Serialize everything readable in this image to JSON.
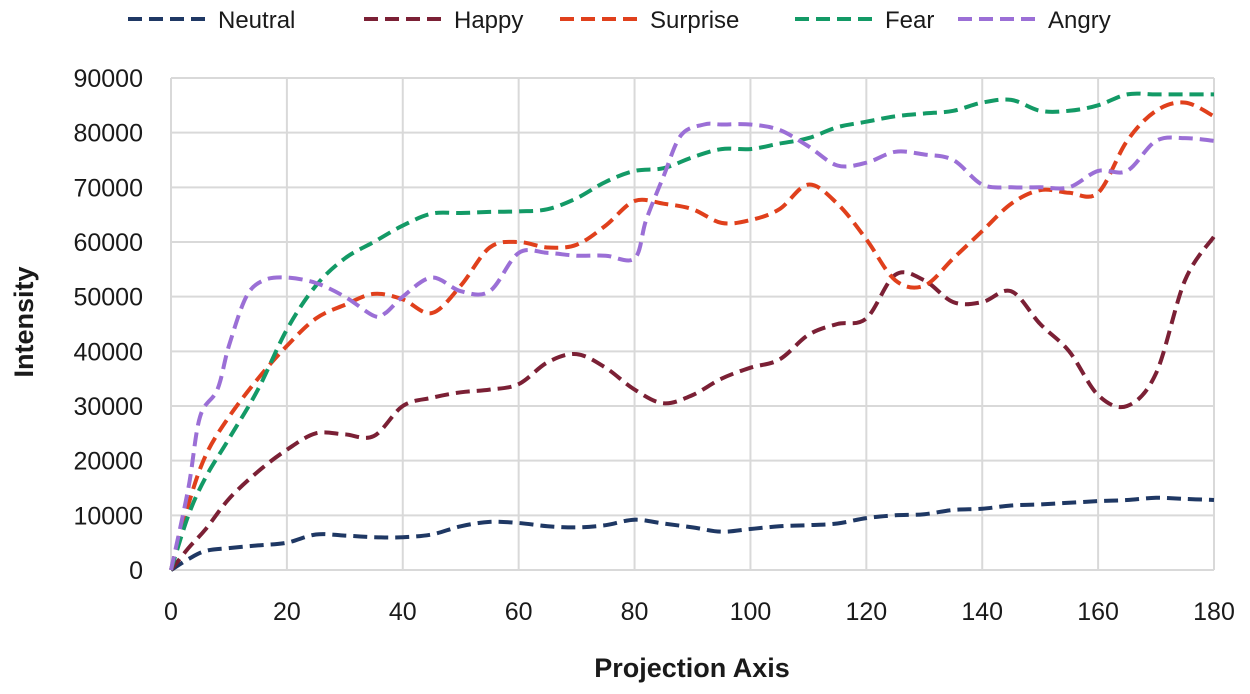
{
  "chart_data": {
    "type": "line",
    "title": "",
    "xlabel": "Projection Axis",
    "ylabel": "Intensity",
    "xlim": [
      0,
      180
    ],
    "ylim": [
      0,
      90000
    ],
    "x_ticks": [
      0,
      20,
      40,
      60,
      80,
      100,
      120,
      140,
      160,
      180
    ],
    "x_tick_labels": [
      "0",
      "20",
      "40",
      "60",
      "80",
      "100",
      "120",
      "140",
      "160",
      "180"
    ],
    "y_ticks": [
      0,
      10000,
      20000,
      30000,
      40000,
      50000,
      60000,
      70000,
      80000,
      90000
    ],
    "y_tick_labels": [
      "0",
      "10000",
      "20000",
      "30000",
      "40000",
      "50000",
      "60000",
      "70000",
      "80000",
      "90000"
    ],
    "grid": true,
    "legend_position": "top",
    "series": [
      {
        "name": "Neutral",
        "color": "#1f3864",
        "x": [
          0,
          3,
          6,
          10,
          15,
          20,
          25,
          30,
          35,
          40,
          45,
          50,
          55,
          60,
          65,
          70,
          75,
          80,
          85,
          90,
          95,
          100,
          105,
          110,
          115,
          120,
          125,
          130,
          135,
          140,
          145,
          150,
          155,
          160,
          165,
          170,
          175,
          180
        ],
        "values": [
          0,
          2000,
          3500,
          4000,
          4500,
          5000,
          6500,
          6300,
          6000,
          6000,
          6500,
          8000,
          8800,
          8600,
          8000,
          7800,
          8200,
          9200,
          8500,
          7800,
          7000,
          7500,
          8000,
          8200,
          8500,
          9500,
          10000,
          10200,
          11000,
          11200,
          11800,
          12000,
          12300,
          12600,
          12800,
          13200,
          13000,
          12800
        ]
      },
      {
        "name": "Happy",
        "color": "#7b2035",
        "x": [
          0,
          3,
          6,
          10,
          15,
          20,
          25,
          30,
          35,
          40,
          45,
          50,
          55,
          60,
          65,
          70,
          75,
          80,
          85,
          90,
          95,
          100,
          105,
          110,
          115,
          120,
          125,
          130,
          135,
          140,
          145,
          150,
          155,
          160,
          165,
          170,
          175,
          180
        ],
        "values": [
          0,
          4000,
          7500,
          13000,
          18000,
          22000,
          25000,
          24800,
          24500,
          30000,
          31500,
          32500,
          33000,
          34000,
          38000,
          39500,
          37000,
          33000,
          30500,
          32000,
          35000,
          37000,
          38500,
          43000,
          45000,
          46000,
          54000,
          53000,
          49000,
          49000,
          51000,
          45000,
          40000,
          32000,
          30000,
          36000,
          53000,
          61000
        ]
      },
      {
        "name": "Surprise",
        "color": "#e0401c",
        "x": [
          0,
          3,
          6,
          10,
          15,
          20,
          25,
          30,
          35,
          40,
          45,
          50,
          55,
          60,
          65,
          70,
          75,
          80,
          85,
          90,
          95,
          100,
          105,
          110,
          115,
          120,
          125,
          130,
          135,
          140,
          145,
          150,
          155,
          160,
          165,
          170,
          175,
          180
        ],
        "values": [
          0,
          12000,
          21000,
          28000,
          35000,
          41000,
          46000,
          48500,
          50500,
          49500,
          47000,
          52000,
          59000,
          60000,
          59000,
          59500,
          63000,
          67500,
          67000,
          66000,
          63500,
          64000,
          66000,
          70500,
          67000,
          60500,
          53000,
          52000,
          57000,
          62000,
          67000,
          69500,
          69000,
          69000,
          78500,
          84000,
          85500,
          83000
        ]
      },
      {
        "name": "Fear",
        "color": "#139a66",
        "x": [
          0,
          3,
          6,
          10,
          15,
          20,
          25,
          30,
          35,
          40,
          45,
          50,
          55,
          60,
          65,
          70,
          75,
          80,
          85,
          90,
          95,
          100,
          105,
          110,
          115,
          120,
          125,
          130,
          135,
          140,
          145,
          150,
          155,
          160,
          165,
          170,
          175,
          180
        ],
        "values": [
          0,
          10000,
          17000,
          24000,
          33000,
          44000,
          52000,
          57000,
          60000,
          63000,
          65200,
          65300,
          65500,
          65600,
          66000,
          68000,
          71000,
          73000,
          73500,
          75500,
          77000,
          77000,
          78000,
          79000,
          81000,
          82000,
          83000,
          83500,
          84000,
          85500,
          86000,
          84000,
          84000,
          85000,
          87000,
          87000,
          87000,
          87000
        ]
      },
      {
        "name": "Angry",
        "color": "#9b6fd6",
        "x": [
          0,
          3,
          5,
          8,
          10,
          13,
          16,
          20,
          25,
          30,
          35,
          37,
          40,
          45,
          50,
          55,
          60,
          65,
          70,
          75,
          80,
          82,
          85,
          88,
          92,
          95,
          100,
          105,
          110,
          115,
          120,
          125,
          130,
          135,
          140,
          145,
          150,
          155,
          160,
          165,
          170,
          175,
          180
        ],
        "values": [
          0,
          15000,
          28000,
          33000,
          41000,
          50000,
          53000,
          53500,
          52500,
          50000,
          46500,
          47000,
          50000,
          53500,
          51000,
          51000,
          58000,
          58000,
          57500,
          57500,
          57000,
          64000,
          72000,
          79500,
          81500,
          81500,
          81500,
          80500,
          77500,
          74000,
          74500,
          76500,
          76000,
          75000,
          70500,
          70000,
          70000,
          70000,
          73000,
          73000,
          78500,
          79000,
          78500
        ]
      }
    ]
  }
}
